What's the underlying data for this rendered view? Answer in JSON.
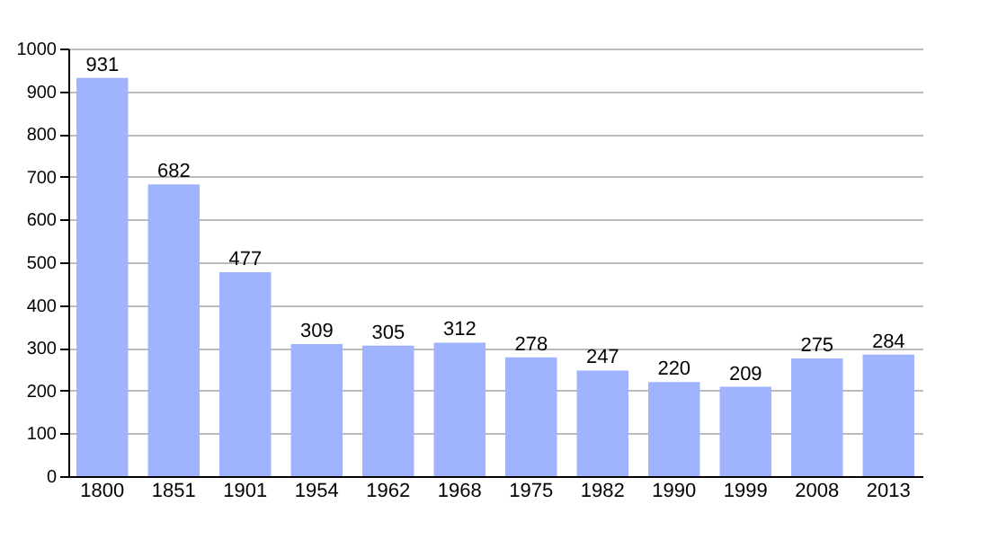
{
  "chart_data": {
    "type": "bar",
    "categories": [
      "1800",
      "1851",
      "1901",
      "1954",
      "1962",
      "1968",
      "1975",
      "1982",
      "1990",
      "1999",
      "2008",
      "2013"
    ],
    "values": [
      931,
      682,
      477,
      309,
      305,
      312,
      278,
      247,
      220,
      209,
      275,
      284
    ],
    "color": "#9fb3ff",
    "ylim": [
      0,
      1000
    ],
    "yticks": [
      0,
      100,
      200,
      300,
      400,
      500,
      600,
      700,
      800,
      900,
      1000
    ],
    "grid": "y",
    "data_labels": true
  }
}
